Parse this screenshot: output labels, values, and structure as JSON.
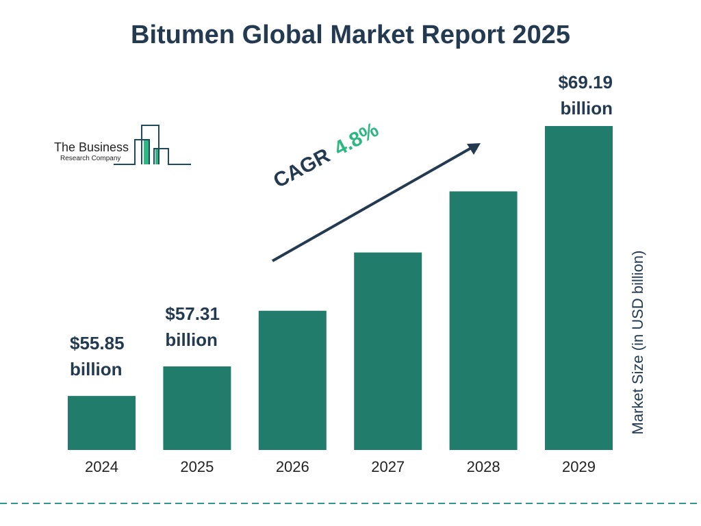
{
  "title": "Bitumen Global Market Report 2025",
  "logo": {
    "line1": "The Business",
    "line2": "Research Company"
  },
  "colors": {
    "bar": "#217c6b",
    "text": "#233a50",
    "accent": "#2db782",
    "dash": "#2a9a8a"
  },
  "chart_data": {
    "type": "bar",
    "title": "Bitumen Global Market Report 2025",
    "ylabel": "Market Size (in USD billion)",
    "categories": [
      "2024",
      "2025",
      "2026",
      "2027",
      "2028",
      "2029"
    ],
    "values": [
      55.85,
      57.31,
      60.06,
      62.94,
      65.96,
      69.19
    ],
    "data_labels": [
      {
        "index": 0,
        "line1": "$55.85",
        "line2": "billion"
      },
      {
        "index": 1,
        "line1": "$57.31",
        "line2": "billion"
      },
      {
        "index": 5,
        "line1": "$69.19",
        "line2": "billion"
      }
    ],
    "annotation": {
      "label": "CAGR",
      "value": "4.8%"
    },
    "grid": false,
    "legend": "none"
  }
}
